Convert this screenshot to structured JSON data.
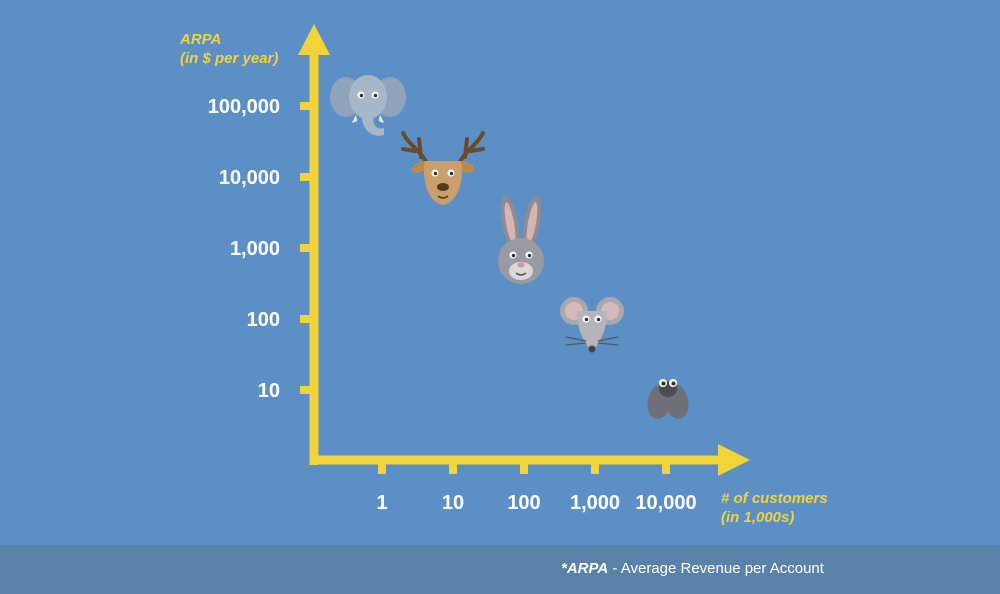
{
  "chart_data": {
    "type": "scatter",
    "ylabel_lines": [
      "ARPA",
      "(in $ per year)"
    ],
    "xlabel_lines": [
      "# of customers",
      "(in 1,000s)"
    ],
    "y_ticks": [
      {
        "value": 10,
        "label": "10"
      },
      {
        "value": 100,
        "label": "100"
      },
      {
        "value": 1000,
        "label": "1,000"
      },
      {
        "value": 10000,
        "label": "10,000"
      },
      {
        "value": 100000,
        "label": "100,000"
      }
    ],
    "x_ticks": [
      {
        "value": 1,
        "label": "1"
      },
      {
        "value": 10,
        "label": "10"
      },
      {
        "value": 100,
        "label": "100"
      },
      {
        "value": 1000,
        "label": "1,000"
      },
      {
        "value": 10000,
        "label": "10,000"
      }
    ],
    "log_scale_x": true,
    "log_scale_y": true,
    "points": [
      {
        "marker": "elephant-icon",
        "x": 1,
        "y": 100000
      },
      {
        "marker": "deer-icon",
        "x": 10,
        "y": 10000
      },
      {
        "marker": "rabbit-icon",
        "x": 100,
        "y": 1000
      },
      {
        "marker": "mouse-icon",
        "x": 1000,
        "y": 100
      },
      {
        "marker": "fly-icon",
        "x": 10000,
        "y": 10
      }
    ],
    "axis_color": "#f2d33a",
    "background_color": "#5b8fc5"
  },
  "footnote": {
    "term": "*ARPA",
    "definition": " - Average Revenue per Account"
  },
  "footer_color": "#5a81a8"
}
